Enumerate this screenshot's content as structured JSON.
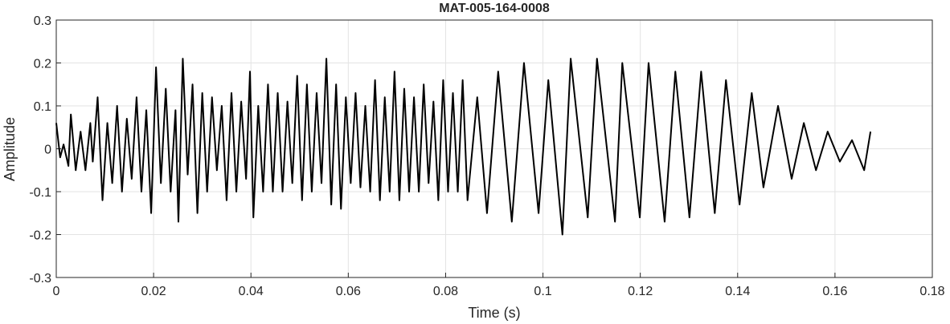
{
  "chart_data": {
    "type": "line",
    "title": "MAT-005-164-0008",
    "x_label": "Time (s)",
    "y_label": "Amplitude",
    "series": [
      {
        "color": "#000000",
        "x": [
          0,
          0.0008,
          0.0015,
          0.0025,
          0.003,
          0.004,
          0.005,
          0.006,
          0.007,
          0.0075,
          0.0085,
          0.0095,
          0.0105,
          0.0115,
          0.0125,
          0.0135,
          0.0145,
          0.0155,
          0.0165,
          0.0175,
          0.0185,
          0.0195,
          0.0205,
          0.0215,
          0.0225,
          0.0235,
          0.0245,
          0.0251,
          0.026,
          0.027,
          0.028,
          0.029,
          0.03,
          0.031,
          0.032,
          0.033,
          0.034,
          0.035,
          0.036,
          0.037,
          0.038,
          0.039,
          0.0398,
          0.0405,
          0.0415,
          0.0425,
          0.0435,
          0.0445,
          0.0455,
          0.0465,
          0.0475,
          0.0485,
          0.0495,
          0.0505,
          0.0515,
          0.0525,
          0.0535,
          0.0545,
          0.0555,
          0.0565,
          0.0575,
          0.0585,
          0.0595,
          0.0605,
          0.0615,
          0.0625,
          0.0635,
          0.0645,
          0.0655,
          0.0665,
          0.0675,
          0.0685,
          0.0695,
          0.0705,
          0.0715,
          0.0725,
          0.0735,
          0.0745,
          0.0755,
          0.0765,
          0.0775,
          0.0785,
          0.0795,
          0.0805,
          0.0815,
          0.0825,
          0.0835,
          0.0845,
          0.0865,
          0.0885,
          0.0908,
          0.0936,
          0.0961,
          0.0991,
          0.1011,
          0.104,
          0.1057,
          0.1092,
          0.1111,
          0.1148,
          0.1163,
          0.1199,
          0.1217,
          0.125,
          0.1272,
          0.1301,
          0.1325,
          0.1353,
          0.1376,
          0.1404,
          0.1429,
          0.1453,
          0.1483,
          0.1511,
          0.1536,
          0.1561,
          0.1585,
          0.161,
          0.1635,
          0.166,
          0.1673
        ],
        "values": [
          0.06,
          -0.02,
          0.01,
          -0.04,
          0.08,
          -0.05,
          0.04,
          -0.05,
          0.06,
          -0.03,
          0.12,
          -0.12,
          0.06,
          -0.08,
          0.1,
          -0.1,
          0.07,
          -0.07,
          0.12,
          -0.1,
          0.09,
          -0.15,
          0.19,
          -0.08,
          0.14,
          -0.1,
          0.09,
          -0.17,
          0.21,
          -0.06,
          0.15,
          -0.15,
          0.13,
          -0.1,
          0.12,
          -0.05,
          0.1,
          -0.12,
          0.13,
          -0.1,
          0.11,
          -0.07,
          0.18,
          -0.16,
          0.1,
          -0.1,
          0.15,
          -0.1,
          0.13,
          -0.1,
          0.11,
          -0.08,
          0.17,
          -0.12,
          0.15,
          -0.1,
          0.13,
          -0.08,
          0.21,
          -0.13,
          0.15,
          -0.14,
          0.12,
          -0.08,
          0.13,
          -0.09,
          0.1,
          -0.1,
          0.16,
          -0.12,
          0.12,
          -0.1,
          0.18,
          -0.12,
          0.14,
          -0.1,
          0.12,
          -0.1,
          0.15,
          -0.08,
          0.11,
          -0.12,
          0.16,
          -0.1,
          0.13,
          -0.1,
          0.16,
          -0.12,
          0.12,
          -0.15,
          0.18,
          -0.17,
          0.2,
          -0.15,
          0.16,
          -0.2,
          0.21,
          -0.16,
          0.21,
          -0.17,
          0.2,
          -0.16,
          0.2,
          -0.17,
          0.18,
          -0.16,
          0.18,
          -0.15,
          0.16,
          -0.13,
          0.13,
          -0.09,
          0.1,
          -0.07,
          0.06,
          -0.05,
          0.04,
          -0.03,
          0.02,
          -0.05,
          0.04
        ]
      }
    ],
    "xlim": [
      0,
      0.18
    ],
    "xticks": [
      0,
      0.02,
      0.04,
      0.06,
      0.08,
      0.1,
      0.12,
      0.14,
      0.16,
      0.18
    ],
    "ylim": [
      -0.3,
      0.3
    ],
    "yticks": [
      -0.3,
      -0.2,
      -0.1,
      0,
      0.1,
      0.2,
      0.3
    ],
    "grid": true
  }
}
